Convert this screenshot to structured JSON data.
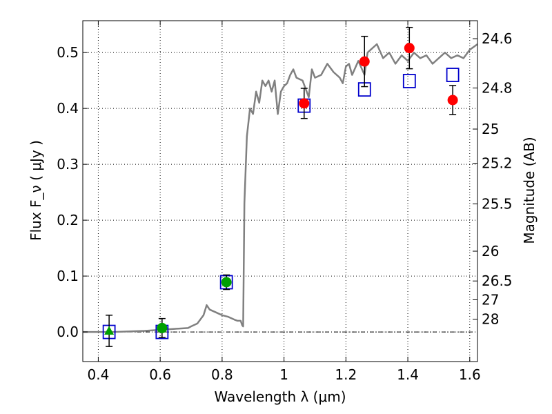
{
  "chart_data": {
    "type": "scatter",
    "xlabel": "Wavelength  λ (μm)",
    "ylabel": "Flux  F_ν ( μJy )",
    "ylabel_right": "Magnitude (AB)",
    "xlim": [
      0.35,
      1.625
    ],
    "ylim": [
      -0.053,
      0.557
    ],
    "grid": true,
    "x_ticks": [
      {
        "value": 0.4,
        "label": "0.4"
      },
      {
        "value": 0.6,
        "label": "0.6"
      },
      {
        "value": 0.8,
        "label": "0.8"
      },
      {
        "value": 1.0,
        "label": "1"
      },
      {
        "value": 1.2,
        "label": "1.2"
      },
      {
        "value": 1.4,
        "label": "1.4"
      },
      {
        "value": 1.6,
        "label": "1.6"
      }
    ],
    "y_ticks": [
      {
        "value": 0.0,
        "label": "0.0"
      },
      {
        "value": 0.1,
        "label": "0.1"
      },
      {
        "value": 0.2,
        "label": "0.2"
      },
      {
        "value": 0.3,
        "label": "0.3"
      },
      {
        "value": 0.4,
        "label": "0.4"
      },
      {
        "value": 0.5,
        "label": "0.5"
      }
    ],
    "right_ticks": [
      {
        "value": 24.6,
        "label": "24.6"
      },
      {
        "value": 24.8,
        "label": "24.8"
      },
      {
        "value": 25.0,
        "label": "25"
      },
      {
        "value": 25.2,
        "label": "25.2"
      },
      {
        "value": 25.5,
        "label": "25.5"
      },
      {
        "value": 26.0,
        "label": "26"
      },
      {
        "value": 26.5,
        "label": "26.5"
      },
      {
        "value": 27.0,
        "label": "27"
      },
      {
        "value": 28.0,
        "label": "28"
      }
    ],
    "model_sed": {
      "color": "#808080",
      "x": [
        0.35,
        0.45,
        0.55,
        0.66,
        0.69,
        0.7,
        0.72,
        0.74,
        0.75,
        0.76,
        0.78,
        0.8,
        0.82,
        0.84,
        0.85,
        0.86,
        0.865,
        0.868,
        0.872,
        0.88,
        0.89,
        0.9,
        0.91,
        0.92,
        0.93,
        0.94,
        0.95,
        0.96,
        0.97,
        0.98,
        0.99,
        1.0,
        1.01,
        1.02,
        1.03,
        1.04,
        1.06,
        1.08,
        1.09,
        1.1,
        1.12,
        1.14,
        1.16,
        1.18,
        1.19,
        1.2,
        1.21,
        1.22,
        1.24,
        1.26,
        1.27,
        1.28,
        1.3,
        1.32,
        1.34,
        1.36,
        1.38,
        1.4,
        1.42,
        1.44,
        1.46,
        1.48,
        1.5,
        1.52,
        1.54,
        1.56,
        1.58,
        1.6,
        1.625
      ],
      "y": [
        0.0,
        0.0,
        0.002,
        0.006,
        0.007,
        0.01,
        0.015,
        0.03,
        0.048,
        0.04,
        0.035,
        0.03,
        0.027,
        0.022,
        0.02,
        0.02,
        0.012,
        0.01,
        0.23,
        0.35,
        0.4,
        0.39,
        0.43,
        0.41,
        0.45,
        0.44,
        0.45,
        0.43,
        0.45,
        0.39,
        0.43,
        0.44,
        0.445,
        0.46,
        0.47,
        0.455,
        0.45,
        0.42,
        0.47,
        0.455,
        0.46,
        0.48,
        0.465,
        0.455,
        0.445,
        0.475,
        0.48,
        0.46,
        0.485,
        0.46,
        0.5,
        0.505,
        0.515,
        0.49,
        0.5,
        0.48,
        0.495,
        0.485,
        0.5,
        0.49,
        0.495,
        0.48,
        0.49,
        0.5,
        0.49,
        0.495,
        0.49,
        0.505,
        0.515
      ]
    },
    "observed": [
      {
        "x": 0.435,
        "y": 0.002,
        "err": 0.028,
        "marker": "triangle",
        "color": "#00a000"
      },
      {
        "x": 0.606,
        "y": 0.007,
        "err": 0.017,
        "marker": "circle",
        "color": "#00a000"
      },
      {
        "x": 0.814,
        "y": 0.089,
        "err": 0.013,
        "marker": "circle",
        "color": "#00a000"
      },
      {
        "x": 1.065,
        "y": 0.409,
        "err": 0.027,
        "marker": "circle",
        "color": "#ff0000"
      },
      {
        "x": 1.26,
        "y": 0.484,
        "err": 0.045,
        "marker": "circle",
        "color": "#ff0000"
      },
      {
        "x": 1.405,
        "y": 0.508,
        "err": 0.037,
        "marker": "circle",
        "color": "#ff0000"
      },
      {
        "x": 1.545,
        "y": 0.415,
        "err": 0.026,
        "marker": "circle",
        "color": "#ff0000"
      }
    ],
    "model_photometry": {
      "color": "#0000cc",
      "marker": "open-square",
      "x": [
        0.435,
        0.606,
        0.814,
        1.065,
        1.26,
        1.405,
        1.545
      ],
      "y": [
        0.0,
        0.0,
        0.089,
        0.405,
        0.434,
        0.449,
        0.46
      ]
    },
    "zero_line": {
      "y": 0.0,
      "style": "dash-dot"
    }
  }
}
